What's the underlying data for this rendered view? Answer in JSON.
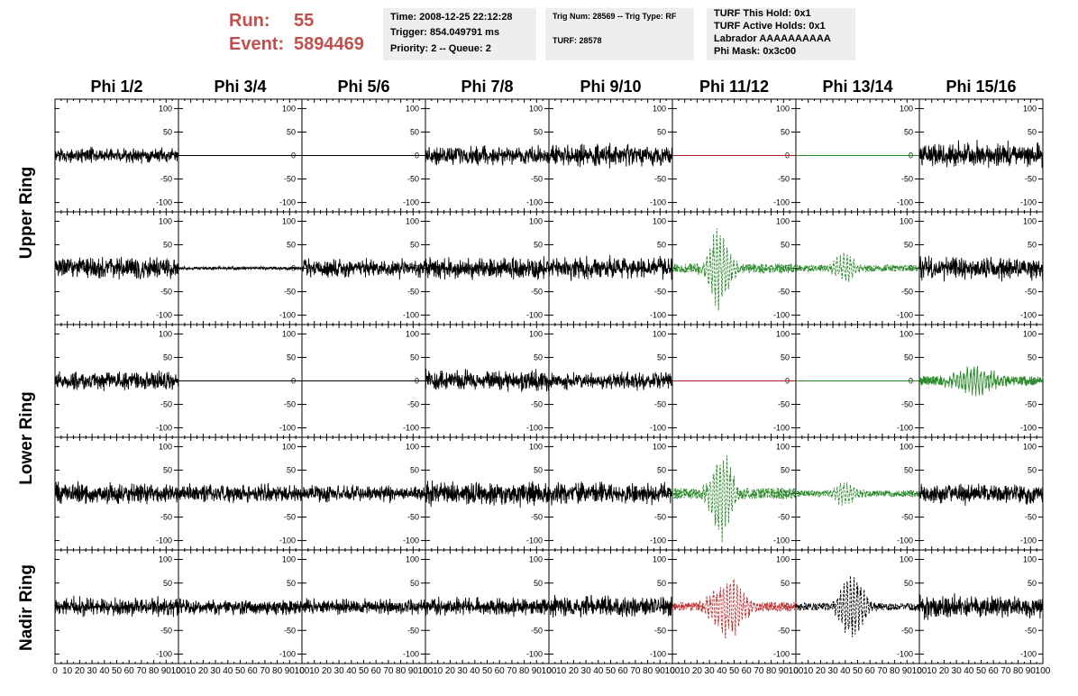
{
  "header": {
    "run_label": "Run:",
    "run_value": "55",
    "event_label": "Event:",
    "event_value": "5894469",
    "time": "Time: 2008-12-25 22:12:28",
    "trigger": "Trigger: 854.049791 ms",
    "priority": "Priority: 2 -- Queue: 2",
    "trig_num": "Trig Num: 28569 -- Trig Type: RF",
    "turf": "TURF: 28578",
    "turf_hold": "TURF This Hold: 0x1",
    "turf_active": "TURF Active Holds: 0x1",
    "labrador": "Labrador AAAAAAAAAA",
    "phi_mask": "Phi Mask: 0x3c00"
  },
  "columns": [
    "Phi 1/2",
    "Phi 3/4",
    "Phi 5/6",
    "Phi 7/8",
    "Phi 9/10",
    "Phi 11/12",
    "Phi 13/14",
    "Phi 15/16"
  ],
  "rows": [
    "Upper Ring",
    "Lower Ring",
    "Nadir Ring"
  ],
  "chart_data": {
    "type": "line",
    "layout": "grid of 5 panel rows x 8 columns",
    "xlim": [
      0,
      100
    ],
    "ylim": [
      -120,
      120
    ],
    "yticks": [
      -100,
      -50,
      0,
      50,
      100
    ],
    "y_tick_labels": [
      "-100",
      "-50",
      "0",
      "50",
      "100"
    ],
    "x_tick_labels": [
      "0",
      "10",
      "20",
      "30",
      "40",
      "50",
      "60",
      "70",
      "80",
      "90",
      "100"
    ],
    "colors": {
      "normal": "#000000",
      "triggered_green": "#2e8b2e",
      "triggered_red": "#c03030",
      "masked_red": "#b02020",
      "masked_green": "#228b22"
    },
    "panels": [
      [
        {
          "style": "noise",
          "amp": 9,
          "color": "#000000"
        },
        {
          "style": "flat",
          "color": "#000000"
        },
        {
          "style": "flat",
          "color": "#000000"
        },
        {
          "style": "noise",
          "amp": 11,
          "color": "#000000"
        },
        {
          "style": "noise",
          "amp": 13,
          "color": "#000000"
        },
        {
          "style": "flat",
          "color": "#b02020"
        },
        {
          "style": "flat",
          "color": "#228b22"
        },
        {
          "style": "noise",
          "amp": 15,
          "color": "#000000"
        }
      ],
      [
        {
          "style": "noise",
          "amp": 13,
          "color": "#000000"
        },
        {
          "style": "noise",
          "amp": 2,
          "color": "#000000"
        },
        {
          "style": "noise",
          "amp": 11,
          "color": "#000000"
        },
        {
          "style": "noise",
          "amp": 13,
          "color": "#000000"
        },
        {
          "style": "noise",
          "amp": 13,
          "color": "#000000"
        },
        {
          "style": "pulse",
          "amp": 95,
          "center": 38,
          "width": 10,
          "base": 10,
          "color": "#2e8b2e",
          "dashed": true
        },
        {
          "style": "pulse",
          "amp": 30,
          "center": 40,
          "width": 10,
          "base": 7,
          "color": "#2e8b2e",
          "dashed": true
        },
        {
          "style": "noise",
          "amp": 13,
          "color": "#000000"
        }
      ],
      [
        {
          "style": "noise",
          "amp": 11,
          "color": "#000000"
        },
        {
          "style": "flat",
          "color": "#000000"
        },
        {
          "style": "flat",
          "color": "#000000"
        },
        {
          "style": "noise",
          "amp": 13,
          "color": "#000000"
        },
        {
          "style": "noise",
          "amp": 10,
          "color": "#000000"
        },
        {
          "style": "flat",
          "color": "#b02020"
        },
        {
          "style": "flat",
          "color": "#228b22"
        },
        {
          "style": "pulse",
          "amp": 30,
          "center": 45,
          "width": 18,
          "base": 10,
          "color": "#2e8b2e",
          "dashed": false
        }
      ],
      [
        {
          "style": "noise",
          "amp": 13,
          "color": "#000000"
        },
        {
          "style": "noise",
          "amp": 11,
          "color": "#000000"
        },
        {
          "style": "noise",
          "amp": 10,
          "color": "#000000"
        },
        {
          "style": "noise",
          "amp": 14,
          "color": "#000000"
        },
        {
          "style": "noise",
          "amp": 12,
          "color": "#000000"
        },
        {
          "style": "pulse",
          "amp": 100,
          "center": 40,
          "width": 10,
          "base": 12,
          "color": "#2e8b2e",
          "dashed": true
        },
        {
          "style": "pulse",
          "amp": 25,
          "center": 40,
          "width": 10,
          "base": 7,
          "color": "#2e8b2e",
          "dashed": true
        },
        {
          "style": "noise",
          "amp": 12,
          "color": "#000000"
        }
      ],
      [
        {
          "style": "noise",
          "amp": 11,
          "color": "#000000"
        },
        {
          "style": "noise",
          "amp": 9,
          "color": "#000000"
        },
        {
          "style": "noise",
          "amp": 9,
          "color": "#000000"
        },
        {
          "style": "noise",
          "amp": 10,
          "color": "#000000"
        },
        {
          "style": "noise",
          "amp": 12,
          "color": "#000000"
        },
        {
          "style": "pulse",
          "amp": 70,
          "center": 45,
          "width": 14,
          "base": 10,
          "color": "#c03030",
          "dashed": true
        },
        {
          "style": "pulse",
          "amp": 75,
          "center": 45,
          "width": 11,
          "base": 8,
          "color": "#000000",
          "dashed": true
        },
        {
          "style": "noise",
          "amp": 13,
          "color": "#000000"
        }
      ]
    ]
  }
}
